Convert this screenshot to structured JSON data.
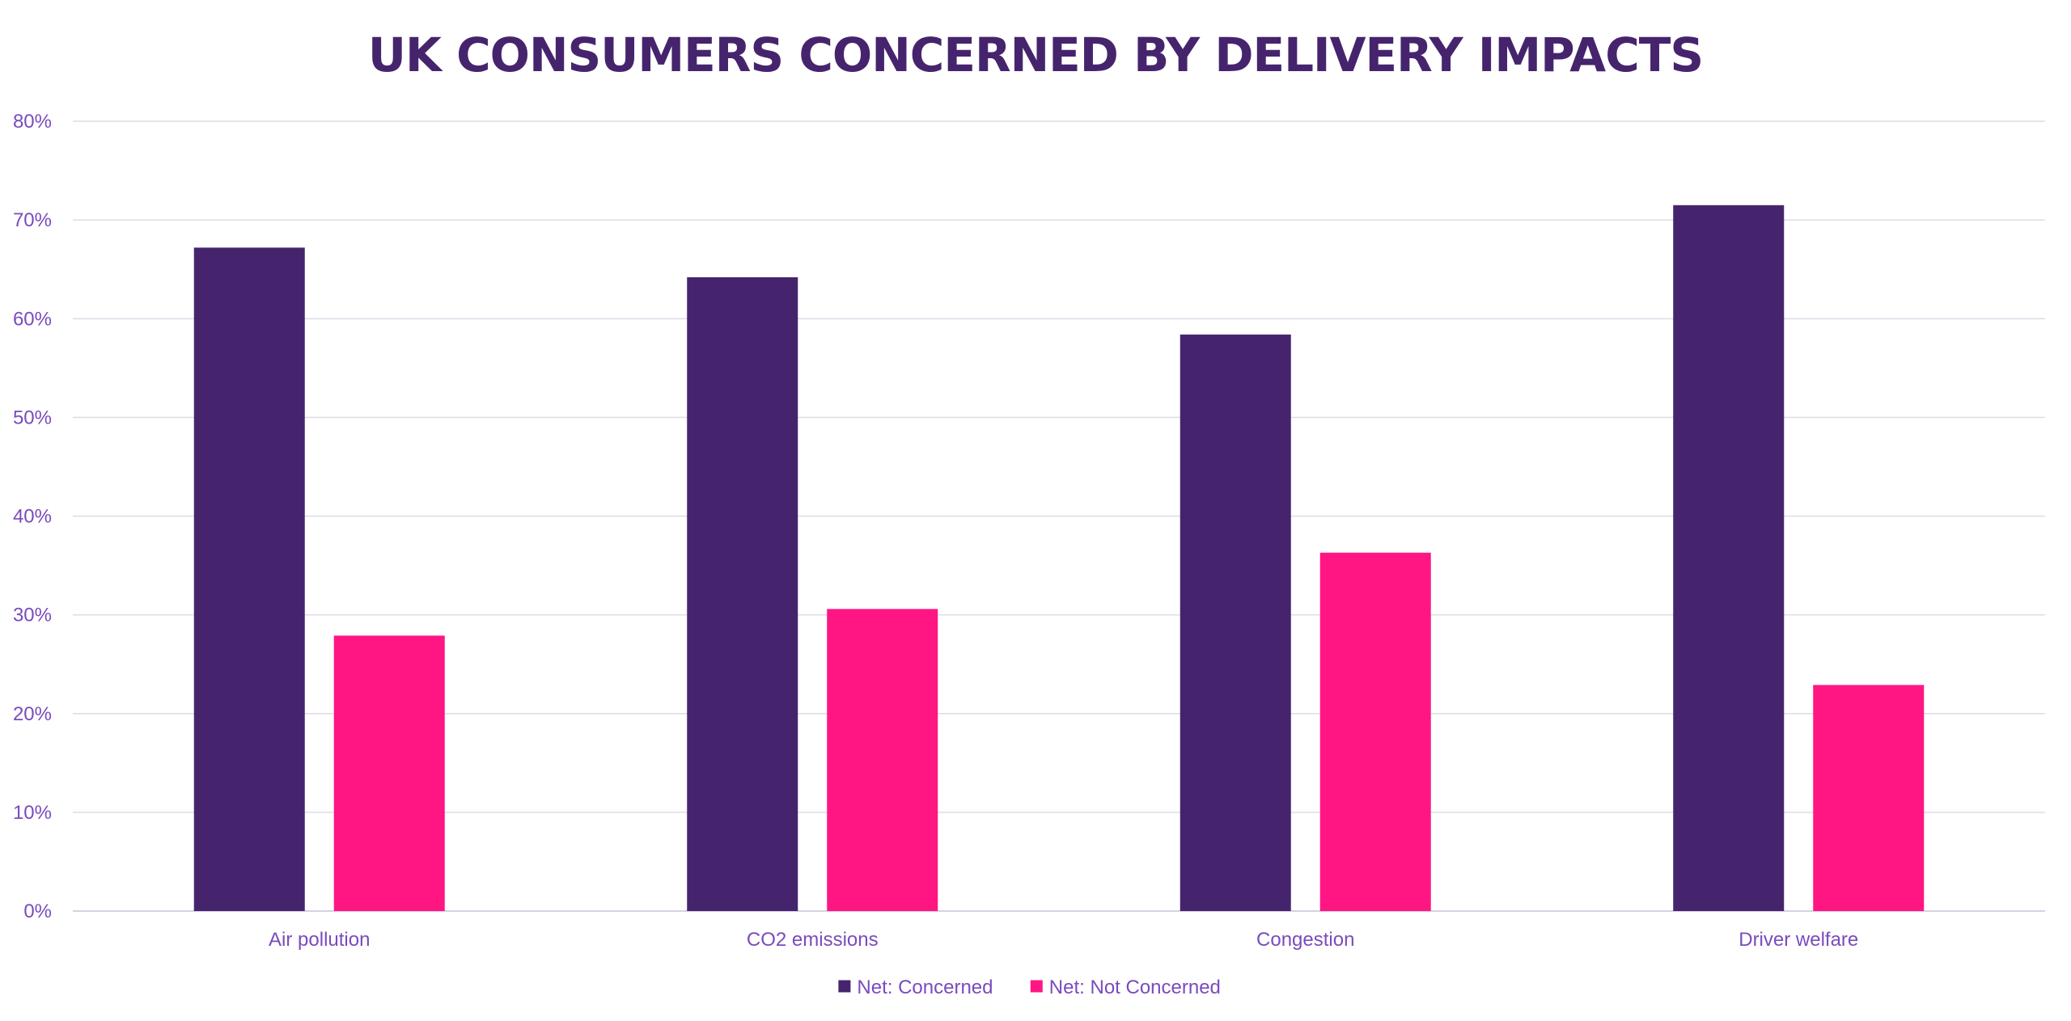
{
  "chart_data": {
    "type": "bar",
    "title": "UK CONSUMERS CONCERNED BY DELIVERY IMPACTS",
    "xlabel": "",
    "ylabel": "",
    "ylim": [
      0,
      80
    ],
    "yticks": [
      "0%",
      "10%",
      "20%",
      "30%",
      "40%",
      "50%",
      "60%",
      "70%",
      "80%"
    ],
    "categories": [
      "Air pollution",
      "CO2 emissions",
      "Congestion",
      "Driver welfare"
    ],
    "series": [
      {
        "name": "Net: Concerned",
        "color": "#46246d",
        "values": [
          67.2,
          64.2,
          58.4,
          71.5
        ]
      },
      {
        "name": "Net: Not Concerned",
        "color": "#ff1683",
        "values": [
          27.9,
          30.6,
          36.3,
          22.9
        ]
      }
    ],
    "grid": true,
    "legend_position": "bottom-center"
  },
  "colors": {
    "title": "#46246d",
    "axis_text": "#7a4bbd",
    "gridline": "#dedbe8",
    "axis_line": "#d6d2e2"
  }
}
